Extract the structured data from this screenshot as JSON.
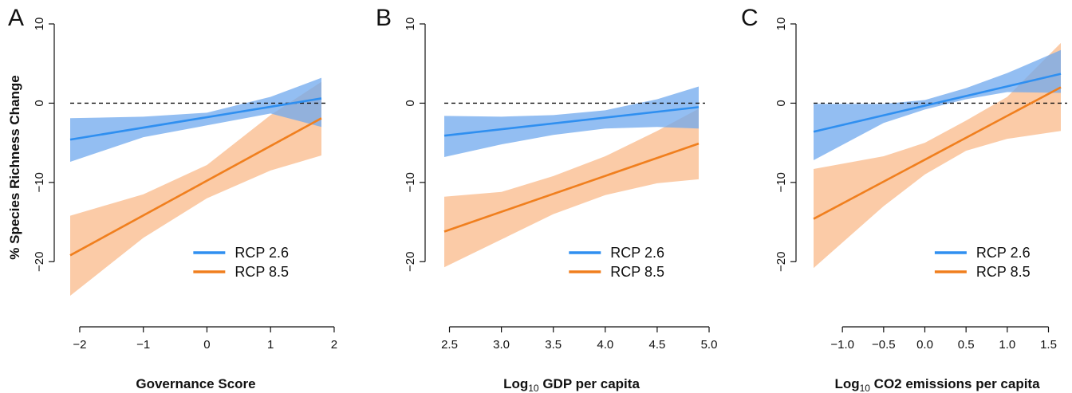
{
  "colors": {
    "rcp26": "#2f8ff0",
    "rcp85": "#f07f1e",
    "rcp26_band": "#6fa8ee",
    "rcp85_band": "#f9b98a"
  },
  "ylabel": "% Species Richness Change",
  "legend": {
    "rcp26": "RCP 2.6",
    "rcp85": "RCP 8.5"
  },
  "chart_data": [
    {
      "panel": "A",
      "type": "line",
      "xlabel_main": "Governance Score",
      "xlabel_sub": "",
      "xlabel_tail": "",
      "xlim": [
        -2.15,
        1.8
      ],
      "xticks": [
        -2,
        -1,
        0,
        1,
        2
      ],
      "xtick_labels": [
        "−2",
        "−1",
        "0",
        "1",
        "2"
      ],
      "ylim": [
        -24.5,
        10
      ],
      "yticks": [
        10,
        0,
        -10,
        -20
      ],
      "ytick_labels": [
        "10",
        "0",
        "−10",
        "−20"
      ],
      "reference_line": 0,
      "series": [
        {
          "name": "RCP 2.6",
          "x": [
            -2.15,
            1.8
          ],
          "y": [
            -4.6,
            0.6
          ],
          "band_x": [
            -2.15,
            -1.0,
            0.0,
            1.0,
            1.8
          ],
          "band_lower": [
            -7.4,
            -4.3,
            -2.8,
            -1.3,
            -3.0
          ],
          "band_upper": [
            -1.9,
            -1.7,
            -1.2,
            0.8,
            3.2
          ]
        },
        {
          "name": "RCP 8.5",
          "x": [
            -2.15,
            1.8
          ],
          "y": [
            -19.2,
            -1.9
          ],
          "band_lower": [
            -24.3,
            -17.0,
            -12.0,
            -8.5,
            -6.6
          ],
          "band_upper": [
            -14.2,
            -11.5,
            -7.8,
            -1.5,
            2.7
          ],
          "band_x": [
            -2.15,
            -1.0,
            0.0,
            1.0,
            1.8
          ]
        }
      ]
    },
    {
      "panel": "B",
      "type": "line",
      "xlabel_main": "Log",
      "xlabel_sub": "10",
      "xlabel_tail": " GDP per capita",
      "xlim": [
        2.45,
        4.9
      ],
      "xticks": [
        2.5,
        3.0,
        3.5,
        4.0,
        4.5,
        5.0
      ],
      "xtick_labels": [
        "2.5",
        "3.0",
        "3.5",
        "4.0",
        "4.5",
        "5.0"
      ],
      "ylim": [
        -24.5,
        10
      ],
      "yticks": [
        10,
        0,
        -10,
        -20
      ],
      "ytick_labels": [
        "10",
        "0",
        "−10",
        "−20"
      ],
      "reference_line": 0,
      "series": [
        {
          "name": "RCP 2.6",
          "x": [
            2.45,
            4.9
          ],
          "y": [
            -4.1,
            -0.5
          ],
          "band_x": [
            2.45,
            3.0,
            3.5,
            4.0,
            4.5,
            4.9
          ],
          "band_lower": [
            -6.8,
            -5.2,
            -4.0,
            -3.2,
            -3.0,
            -3.2
          ],
          "band_upper": [
            -1.6,
            -1.7,
            -1.5,
            -0.9,
            0.5,
            2.1
          ]
        },
        {
          "name": "RCP 8.5",
          "x": [
            2.45,
            4.9
          ],
          "y": [
            -16.2,
            -5.1
          ],
          "band_x": [
            2.45,
            3.0,
            3.5,
            4.0,
            4.5,
            4.9
          ],
          "band_lower": [
            -20.7,
            -17.2,
            -14.0,
            -11.6,
            -10.1,
            -9.6
          ],
          "band_upper": [
            -11.8,
            -11.2,
            -9.2,
            -6.7,
            -3.5,
            -0.7
          ]
        }
      ]
    },
    {
      "panel": "C",
      "type": "line",
      "xlabel_main": "Log",
      "xlabel_sub": "10",
      "xlabel_tail": " CO2 emissions per capita",
      "xlim": [
        -1.35,
        1.65
      ],
      "xticks": [
        -1.0,
        -0.5,
        0.0,
        0.5,
        1.0,
        1.5
      ],
      "xtick_labels": [
        "−1.0",
        "−0.5",
        "0.0",
        "0.5",
        "1.0",
        "1.5"
      ],
      "ylim": [
        -24.5,
        10
      ],
      "yticks": [
        10,
        0,
        -10,
        -20
      ],
      "ytick_labels": [
        "10",
        "0",
        "−10",
        "−20"
      ],
      "reference_line": 0,
      "series": [
        {
          "name": "RCP 2.6",
          "x": [
            -1.35,
            1.65
          ],
          "y": [
            -3.6,
            3.7
          ],
          "band_x": [
            -1.35,
            -0.5,
            0.0,
            0.5,
            1.0,
            1.65
          ],
          "band_lower": [
            -7.2,
            -2.5,
            -0.8,
            0.5,
            1.4,
            1.3
          ],
          "band_upper": [
            -0.1,
            -0.1,
            0.4,
            1.9,
            3.8,
            6.7
          ]
        },
        {
          "name": "RCP 8.5",
          "x": [
            -1.35,
            1.65
          ],
          "y": [
            -14.6,
            2.0
          ],
          "band_x": [
            -1.35,
            -0.5,
            0.0,
            0.5,
            1.0,
            1.65
          ],
          "band_lower": [
            -20.8,
            -13.0,
            -9.0,
            -6.0,
            -4.5,
            -3.5
          ],
          "band_upper": [
            -8.3,
            -6.7,
            -5.0,
            -2.2,
            0.8,
            7.6
          ]
        }
      ]
    }
  ]
}
